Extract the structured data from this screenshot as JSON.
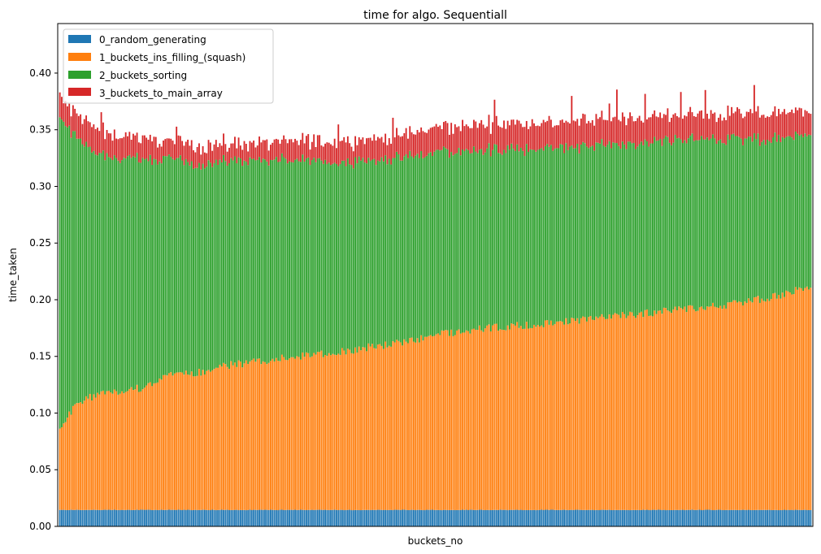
{
  "chart_data": {
    "type": "bar",
    "stacked": true,
    "title": "time for algo. Sequentiall",
    "xlabel": "buckets_no",
    "ylabel": "time_taken",
    "ylim": [
      0,
      0.4437
    ],
    "yticks": [
      0.0,
      0.05,
      0.1,
      0.15,
      0.2,
      0.25,
      0.3,
      0.35,
      0.4
    ],
    "ytick_labels": [
      "0.00",
      "0.05",
      "0.10",
      "0.15",
      "0.20",
      "0.25",
      "0.30",
      "0.35",
      "0.40"
    ],
    "x_tick_labels_shown": false,
    "n_bars": 400,
    "legend_position": "upper-left",
    "grid": false,
    "series": [
      {
        "name": "0_random_generating",
        "color": "#1f77b4",
        "profile_x": [
          0,
          399
        ],
        "profile_y": [
          0.0145,
          0.0145
        ]
      },
      {
        "name": "1_buckets_ins_filling_(squash)",
        "color": "#ff7f0e",
        "profile_x": [
          0,
          10,
          20,
          30,
          45,
          55,
          70,
          90,
          110,
          130,
          150,
          170,
          185,
          200,
          230,
          260,
          290,
          320,
          350,
          380,
          399
        ],
        "profile_y": [
          0.073,
          0.095,
          0.102,
          0.105,
          0.108,
          0.118,
          0.12,
          0.128,
          0.132,
          0.136,
          0.14,
          0.145,
          0.148,
          0.155,
          0.161,
          0.165,
          0.17,
          0.175,
          0.18,
          0.188,
          0.198
        ]
      },
      {
        "name": "2_buckets_sorting",
        "color": "#2ca02c",
        "profile_x": [
          0,
          5,
          10,
          20,
          30,
          40,
          50,
          60,
          80,
          100,
          130,
          160,
          190,
          220,
          250,
          280,
          310,
          340,
          370,
          399
        ],
        "profile_y": [
          0.274,
          0.25,
          0.232,
          0.212,
          0.206,
          0.205,
          0.196,
          0.19,
          0.182,
          0.178,
          0.173,
          0.165,
          0.162,
          0.158,
          0.155,
          0.152,
          0.151,
          0.149,
          0.142,
          0.134
        ]
      },
      {
        "name": "3_buckets_to_main_array",
        "color": "#d62728",
        "profile_x": [
          0,
          10,
          30,
          60,
          100,
          150,
          200,
          250,
          300,
          350,
          399
        ],
        "profile_y": [
          0.018,
          0.022,
          0.02,
          0.016,
          0.015,
          0.018,
          0.022,
          0.024,
          0.022,
          0.022,
          0.022
        ]
      }
    ]
  }
}
